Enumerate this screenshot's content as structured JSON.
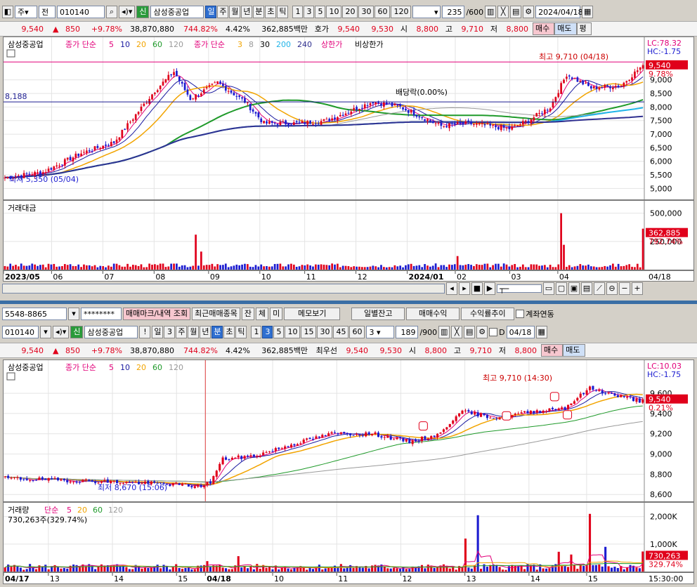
{
  "top": {
    "toolbar": {
      "market": "주",
      "period_mode": "전",
      "code": "010140",
      "credit_badge": "신",
      "name": "삼성중공업",
      "timeframes": [
        "일",
        "주",
        "월",
        "년",
        "분",
        "초",
        "틱"
      ],
      "active_timeframe": "일",
      "minute_steps": [
        "1",
        "3",
        "5",
        "10",
        "20",
        "30",
        "60",
        "120"
      ],
      "count": "235",
      "count_max": "/600",
      "date": "2024/04/18"
    },
    "quote": {
      "price": "9,540",
      "change": "850",
      "change_rate": "+9.78%",
      "volume": "38,870,880",
      "volume_rate": "744.82%",
      "turnover": "4.42%",
      "amount": "362,885백만",
      "ask_label": "호가",
      "ask1": "9,540",
      "ask2": "9,530",
      "open_label": "시",
      "open": "8,800",
      "high_label": "고",
      "high": "9,710",
      "low_label": "저",
      "low": "8,800",
      "buy": "매수",
      "sell": "매도",
      "eval": "평"
    },
    "price_pane": {
      "series_name": "삼성중공업",
      "ma_label": "종가 단순",
      "ma_periods": [
        "5",
        "10",
        "20",
        "60",
        "120"
      ],
      "ma2_label": "종가 단순",
      "ma2_periods": [
        "3",
        "8",
        "30",
        "200",
        "240"
      ],
      "upper_limit": "상한가",
      "lower_limit": "비상한가",
      "lc": "LC:78.32",
      "hc": "HC:-1.75",
      "price_tag": "9,540",
      "rate_tag": "9.78%",
      "high_note": "최고 9,710 (04/18)",
      "low_note": "최저 5,350 (05/04)",
      "dividend_note": "배당락(0.00%)",
      "hline_value": "8,188",
      "yticks": [
        "9,000",
        "8,500",
        "8,000",
        "7,500",
        "7,000",
        "6,500",
        "6,000",
        "5,500",
        "5,000"
      ]
    },
    "vol_pane": {
      "title": "거래대금",
      "yticks": [
        "500,000",
        "250,000"
      ],
      "tag": "362,885",
      "rate": "792.74%"
    },
    "xaxis": [
      "2023/05",
      "06",
      "07",
      "08",
      "09",
      "10",
      "11",
      "12",
      "2024/01",
      "02",
      "03",
      "04"
    ],
    "x_end": "04/18"
  },
  "bottom": {
    "toolbar1": {
      "account": "5548-8865",
      "password": "********",
      "b1": "매매마크/내역 조회",
      "b2": "최근매매종목",
      "b3": "잔",
      "b4": "체",
      "b5": "미",
      "b6": "메모보기",
      "b7": "일별잔고",
      "b8": "매매수익",
      "b9": "수익률추이",
      "link": "계좌연동"
    },
    "toolbar2": {
      "code": "010140",
      "credit_badge": "신",
      "name": "삼성중공업",
      "timeframes": [
        "일",
        "3",
        "주",
        "월",
        "년",
        "분",
        "초",
        "틱"
      ],
      "active_timeframe": "분",
      "minute_steps": [
        "1",
        "3",
        "5",
        "10",
        "15",
        "30",
        "45",
        "60"
      ],
      "active_step": "3",
      "step_value": "3",
      "count": "189",
      "count_max": "/900",
      "date": "04/18",
      "d_label": "D"
    },
    "quote": {
      "price": "9,540",
      "change": "850",
      "change_rate": "+9.78%",
      "volume": "38,870,880",
      "volume_rate": "744.82%",
      "turnover": "4.42%",
      "amount": "362,885백만",
      "ask_label": "최우선",
      "ask1": "9,540",
      "ask2": "9,530",
      "open_label": "시",
      "open": "8,800",
      "high_label": "고",
      "high": "9,710",
      "low_label": "저",
      "low": "8,800",
      "buy": "매수",
      "sell": "매도"
    },
    "price_pane": {
      "series_name": "삼성중공업",
      "ma_label": "종가 단순",
      "ma_periods": [
        "5",
        "10",
        "20",
        "60",
        "120"
      ],
      "lc": "LC:10.03",
      "hc": "HC:-1.75",
      "price_tag": "9,540",
      "rate_tag": "0.21%",
      "high_note": "최고 9,710 (14:30)",
      "low_note": "최저 8,670 (15:06)",
      "yticks": [
        "9,600",
        "9,400",
        "9,200",
        "9,000",
        "8,800",
        "8,600"
      ]
    },
    "vol_pane": {
      "title": "거래량",
      "ma_label": "단순",
      "ma_periods": [
        "5",
        "20",
        "60",
        "120"
      ],
      "info": "730,263주(329.74%)",
      "yticks": [
        "2,000K",
        "1,000K"
      ],
      "tag": "730,263",
      "rate": "329.74%"
    },
    "xaxis": [
      "04/17",
      "13",
      "14",
      "15",
      "04/18",
      "10",
      "11",
      "12",
      "13",
      "14",
      "15"
    ],
    "x_end": "15:30:00"
  },
  "colors": {
    "up": "#e0001b",
    "down": "#1c1cd0",
    "ma5": "#e2007a",
    "ma10": "#1a1aa0",
    "ma20": "#f2a400",
    "ma60": "#1f9a2a",
    "ma120": "#9a9a9a",
    "ma200": "#20b4e8",
    "ma240": "#303090"
  }
}
